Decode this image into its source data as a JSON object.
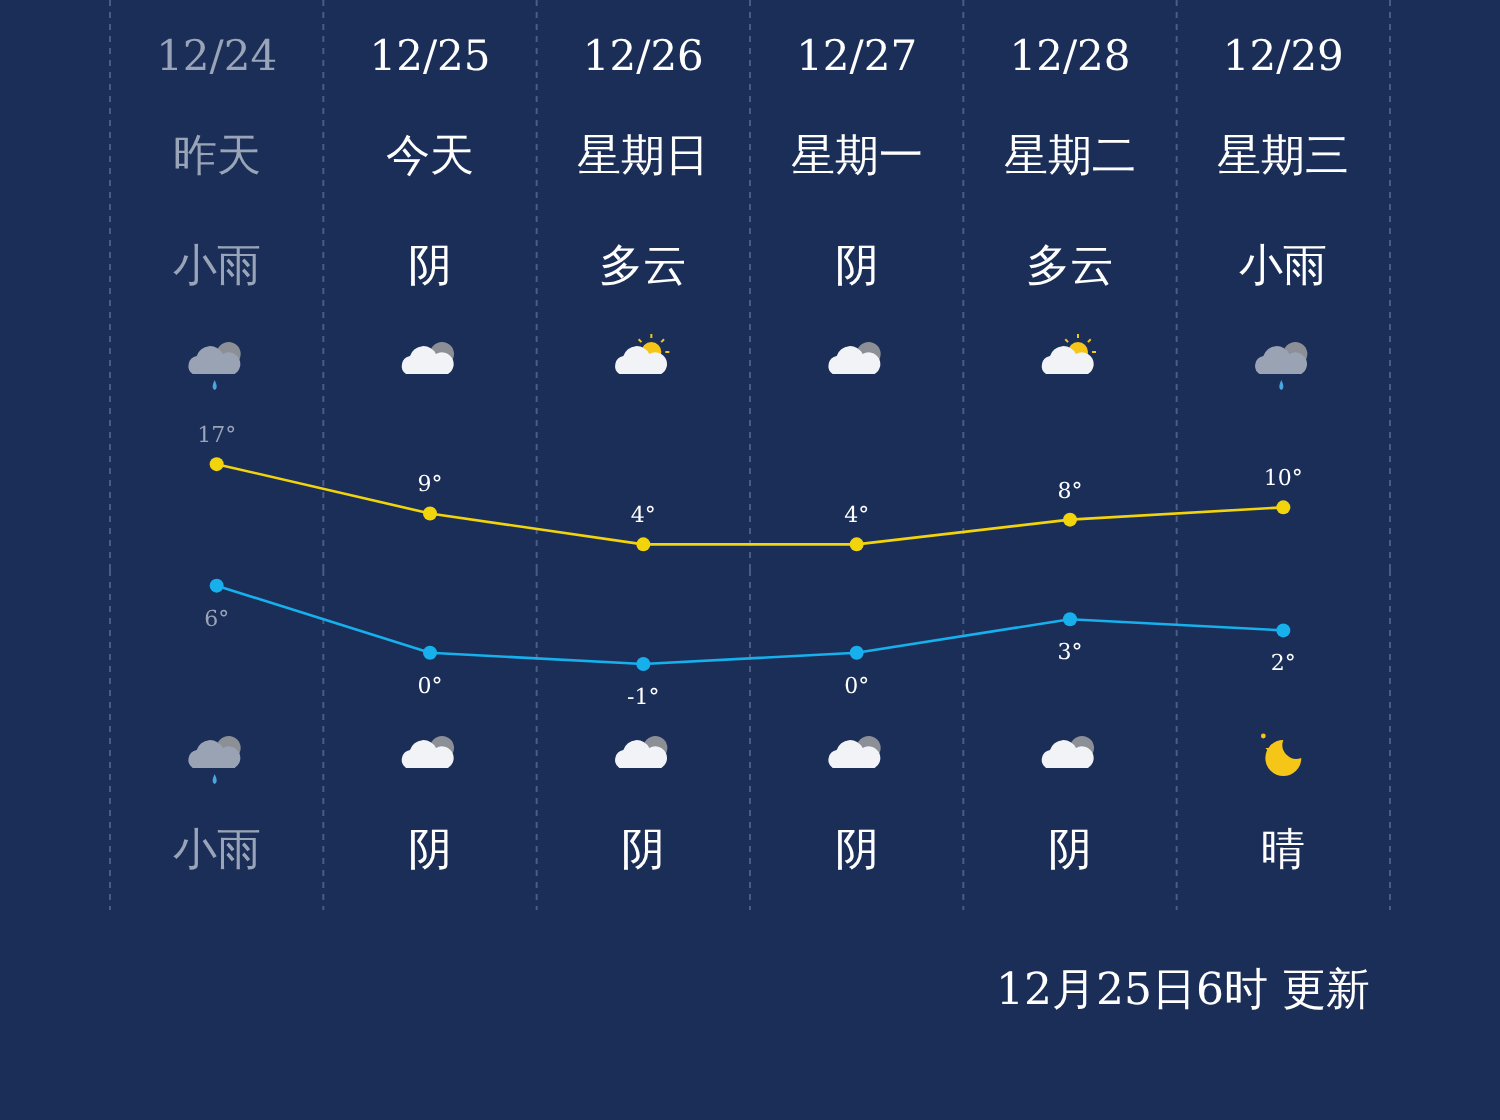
{
  "chart_data": [
    {
      "type": "line",
      "categories": [
        "12/24",
        "12/25",
        "12/26",
        "12/27",
        "12/28",
        "12/29"
      ],
      "series": [
        {
          "color": "#f2d40c",
          "values": [
            17,
            9,
            4,
            4,
            8,
            10
          ],
          "value_labels": [
            "17°",
            "9°",
            "4°",
            "4°",
            "8°",
            "10°"
          ]
        }
      ],
      "tick_labels": "x",
      "marker": "circle",
      "grid": "x",
      "annotations": [
        "昨天",
        "今天",
        "星期日",
        "星期一",
        "星期二",
        "星期三",
        "小雨",
        "阴",
        "多云",
        "阴",
        "多云",
        "小雨"
      ]
    },
    {
      "type": "line",
      "categories": [
        null,
        null,
        null,
        null,
        null,
        null
      ],
      "series": [
        {
          "color": "#17b0ec",
          "values": [
            6,
            0,
            -1,
            0,
            3,
            2
          ],
          "value_labels": [
            "6°",
            "0°",
            "-1°",
            "0°",
            "3°",
            "2°"
          ]
        }
      ],
      "tick_labels": false,
      "marker": "circle",
      "grid": "x",
      "annotations": [
        "小雨",
        "阴",
        "阴",
        "阴",
        "阴",
        "晴",
        "12月25日6时 更新"
      ]
    }
  ]
}
